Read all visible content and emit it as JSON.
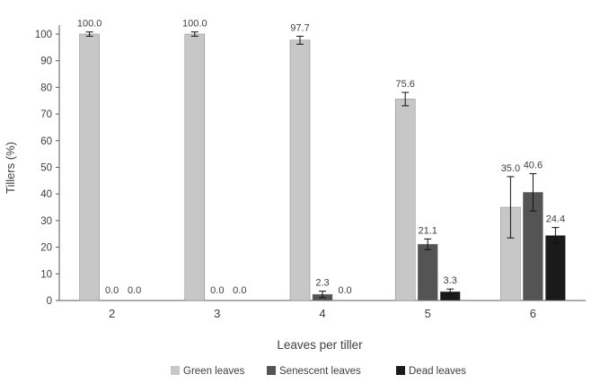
{
  "chart_data": {
    "type": "bar",
    "title": "",
    "xlabel": "Leaves per tiller",
    "ylabel": "Tillers (%)",
    "ylim": [
      0,
      100
    ],
    "ytick_step": 10,
    "grid": false,
    "legend_position": "bottom",
    "value_label_decimals": 1,
    "categories": [
      "2",
      "3",
      "4",
      "5",
      "6"
    ],
    "series": [
      {
        "name": "Green leaves",
        "color": "#c7c7c7",
        "values": [
          100.0,
          100.0,
          97.7,
          75.6,
          35.0
        ],
        "errors": [
          0.8,
          0.8,
          1.5,
          2.5,
          11.5
        ]
      },
      {
        "name": "Senescent leaves",
        "color": "#545454",
        "values": [
          0.0,
          0.0,
          2.3,
          21.1,
          40.6
        ],
        "errors": [
          0,
          0,
          1.2,
          2.0,
          7.0
        ]
      },
      {
        "name": "Dead leaves",
        "color": "#1a1a1a",
        "values": [
          0.0,
          0.0,
          0.0,
          3.3,
          24.4
        ],
        "errors": [
          0,
          0,
          0,
          1.0,
          3.0
        ]
      }
    ]
  }
}
